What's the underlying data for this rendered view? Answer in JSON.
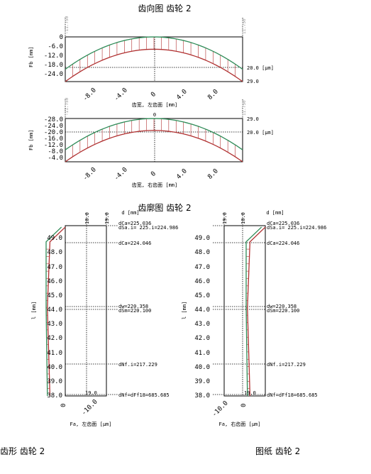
{
  "lead_chart": {
    "title": "齿向图 齿轮 2",
    "upper": {
      "ylabel": "Fb [mm]",
      "xlabel": "齿宽, 左齿面 [mm]",
      "yticks": [
        "0",
        "-6.0",
        "-12.0",
        "-18.0",
        "-24.0"
      ],
      "xticks": [
        "-8.0",
        "-4.0",
        "0",
        "4.0",
        "8.0"
      ],
      "top_mark_left": "-11.750",
      "top_mark_right": "11.750",
      "right_labels": [
        "20.0 [μm]",
        "29.0"
      ]
    },
    "lower": {
      "ylabel": "Fb [mm]",
      "xlabel": "齿宽, 右齿面 [mm]",
      "yticks": [
        "-28.0",
        "-24.0",
        "-20.0",
        "-16.0",
        "-12.0",
        "-8.0",
        "-4.0"
      ],
      "xticks": [
        "-8.0",
        "-4.0",
        "0",
        "4.0",
        "8.0"
      ],
      "top_mark_left": "-11.750",
      "top_mark_right": "11.750",
      "top_center": "0",
      "right_labels": [
        "29.0",
        "20.0 [μm]"
      ]
    }
  },
  "profile_chart": {
    "title": "齿廓图 齿轮 2",
    "d_label": "d  [mm]",
    "left": {
      "xlabel": "Fa, 左齿面 [μm]",
      "top_ticks": [
        "10.0",
        "19.0"
      ],
      "bottom_ticks": [
        "0",
        "-10.0"
      ],
      "ylabel": "l  [mm]",
      "yticks": [
        "49.0",
        "48.0",
        "47.0",
        "46.0",
        "45.0",
        "44.0",
        "43.0",
        "42.0",
        "41.0",
        "40.0",
        "39.0",
        "38.0"
      ],
      "bottom_value": "19.0",
      "annotations": {
        "da": "dCa=225.036",
        "dsa": "dSa.i= 225.i=224.986",
        "dca": "dCa=224.046",
        "dw": "dw=220.358",
        "dsm": "dSm=220.100",
        "dnf": "dNf.i=217.229",
        "df": "dNf=dFf18=685.685"
      }
    },
    "right": {
      "xlabel": "Fa, 右齿面 [μm]",
      "top_ticks": [
        "19.0",
        "10.0"
      ],
      "bottom_ticks": [
        "-10.0",
        "0"
      ],
      "ylabel": "l  [mm]",
      "yticks": [
        "49.0",
        "48.0",
        "47.0",
        "46.0",
        "45.0",
        "44.0",
        "43.0",
        "42.0",
        "41.0",
        "40.0",
        "39.0",
        "38.0"
      ],
      "bottom_value": "19.0",
      "annotations": {
        "da": "dCa=225.036",
        "dsa": "dSa.i= 225.i=224.986",
        "dca": "dCa=224.046",
        "dw": "dw=220.358",
        "dsm": "dSm=220.100",
        "dnf": "dNf.i=217.229",
        "df": "dNf=dFf18=685.685"
      }
    }
  },
  "footer": {
    "left": "齿形 齿轮 2",
    "right": "图纸 齿轮 2"
  },
  "chart_data": [
    {
      "type": "line",
      "title": "齿向图 齿轮 2",
      "xlabel": "齿宽, 左齿面 [mm]",
      "ylabel": "Fb [mm]",
      "x": [
        -11.75,
        0,
        11.75
      ],
      "series": [
        {
          "values": [
            -21,
            0,
            -21
          ],
          "color": "#2e8b57"
        },
        {
          "values": [
            -29,
            -8,
            -29
          ],
          "color": "#b03030"
        }
      ],
      "xlim": [
        -11.75,
        11.75
      ],
      "ylim": [
        -29,
        0
      ]
    },
    {
      "type": "line",
      "xlabel": "齿宽, 右齿面 [mm]",
      "ylabel": "Fb [mm]",
      "x": [
        -11.75,
        0,
        11.75
      ],
      "series": [
        {
          "values": [
            -29,
            -8,
            -29
          ],
          "color": "#b03030"
        },
        {
          "values": [
            -21,
            0,
            -21
          ],
          "color": "#2e8b57"
        }
      ],
      "xlim": [
        -11.75,
        11.75
      ],
      "ylim": [
        -29,
        0
      ]
    },
    {
      "type": "line",
      "title": "齿廓图 齿轮 2",
      "xlabel": "Fa, 左齿面 [μm]",
      "ylabel": "l  [mm]",
      "y": [
        38.0,
        44.0,
        48.5,
        49.5
      ],
      "series": [
        {
          "values": [
            -12,
            -14,
            -12,
            0
          ],
          "color": "#b03030"
        },
        {
          "values": [
            -14,
            -15,
            -15,
            -3
          ],
          "color": "#2e8b57"
        }
      ],
      "ylim": [
        38,
        49.6
      ]
    },
    {
      "type": "line",
      "xlabel": "Fa, 右齿面 [μm]",
      "ylabel": "l  [mm]",
      "y": [
        38.0,
        44.0,
        48.5,
        49.5
      ],
      "series": [
        {
          "values": [
            -12,
            -14,
            -12,
            0
          ],
          "color": "#b03030"
        },
        {
          "values": [
            -14,
            -15,
            -15,
            -3
          ],
          "color": "#2e8b57"
        }
      ],
      "ylim": [
        38,
        49.6
      ]
    }
  ],
  "colors": {
    "green": "#2e8b57",
    "red": "#b03030",
    "hatch": "#b03030"
  }
}
